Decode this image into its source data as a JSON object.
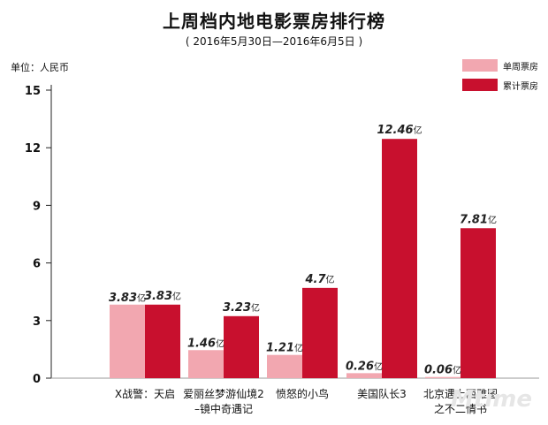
{
  "header": {
    "title": "上周档内地电影票房排行榜",
    "subtitle": "( 2016年5月30日—2016年6月5日 )",
    "unit_label": "单位：人民币"
  },
  "legend": [
    {
      "label": "单周票房",
      "color": "#f2a7b0"
    },
    {
      "label": "累计票房",
      "color": "#c8102e"
    }
  ],
  "watermark": "Mtime",
  "chart_data": {
    "type": "bar",
    "ylim": [
      0,
      15
    ],
    "yticks": [
      "0",
      "3",
      "6",
      "9",
      "12",
      "15"
    ],
    "categories": [
      [
        "X战警：天启"
      ],
      [
        "爱丽丝梦游仙境2",
        "–镜中奇遇记"
      ],
      [
        "愤怒的小鸟"
      ],
      [
        "美国队长3"
      ],
      [
        "北京遇上西雅图",
        "之不二情书"
      ]
    ],
    "series": [
      {
        "name": "单周票房",
        "color": "#f2a7b0",
        "values": [
          3.83,
          1.46,
          1.21,
          0.26,
          0.06
        ],
        "labels": [
          "3.83",
          "1.46",
          "1.21",
          "0.26",
          "0.06"
        ]
      },
      {
        "name": "累计票房",
        "color": "#c8102e",
        "values": [
          3.83,
          3.23,
          4.7,
          12.46,
          7.81
        ],
        "labels": [
          "3.83",
          "3.23",
          "4.7",
          "12.46",
          "7.81"
        ]
      }
    ],
    "value_suffix": "亿"
  }
}
